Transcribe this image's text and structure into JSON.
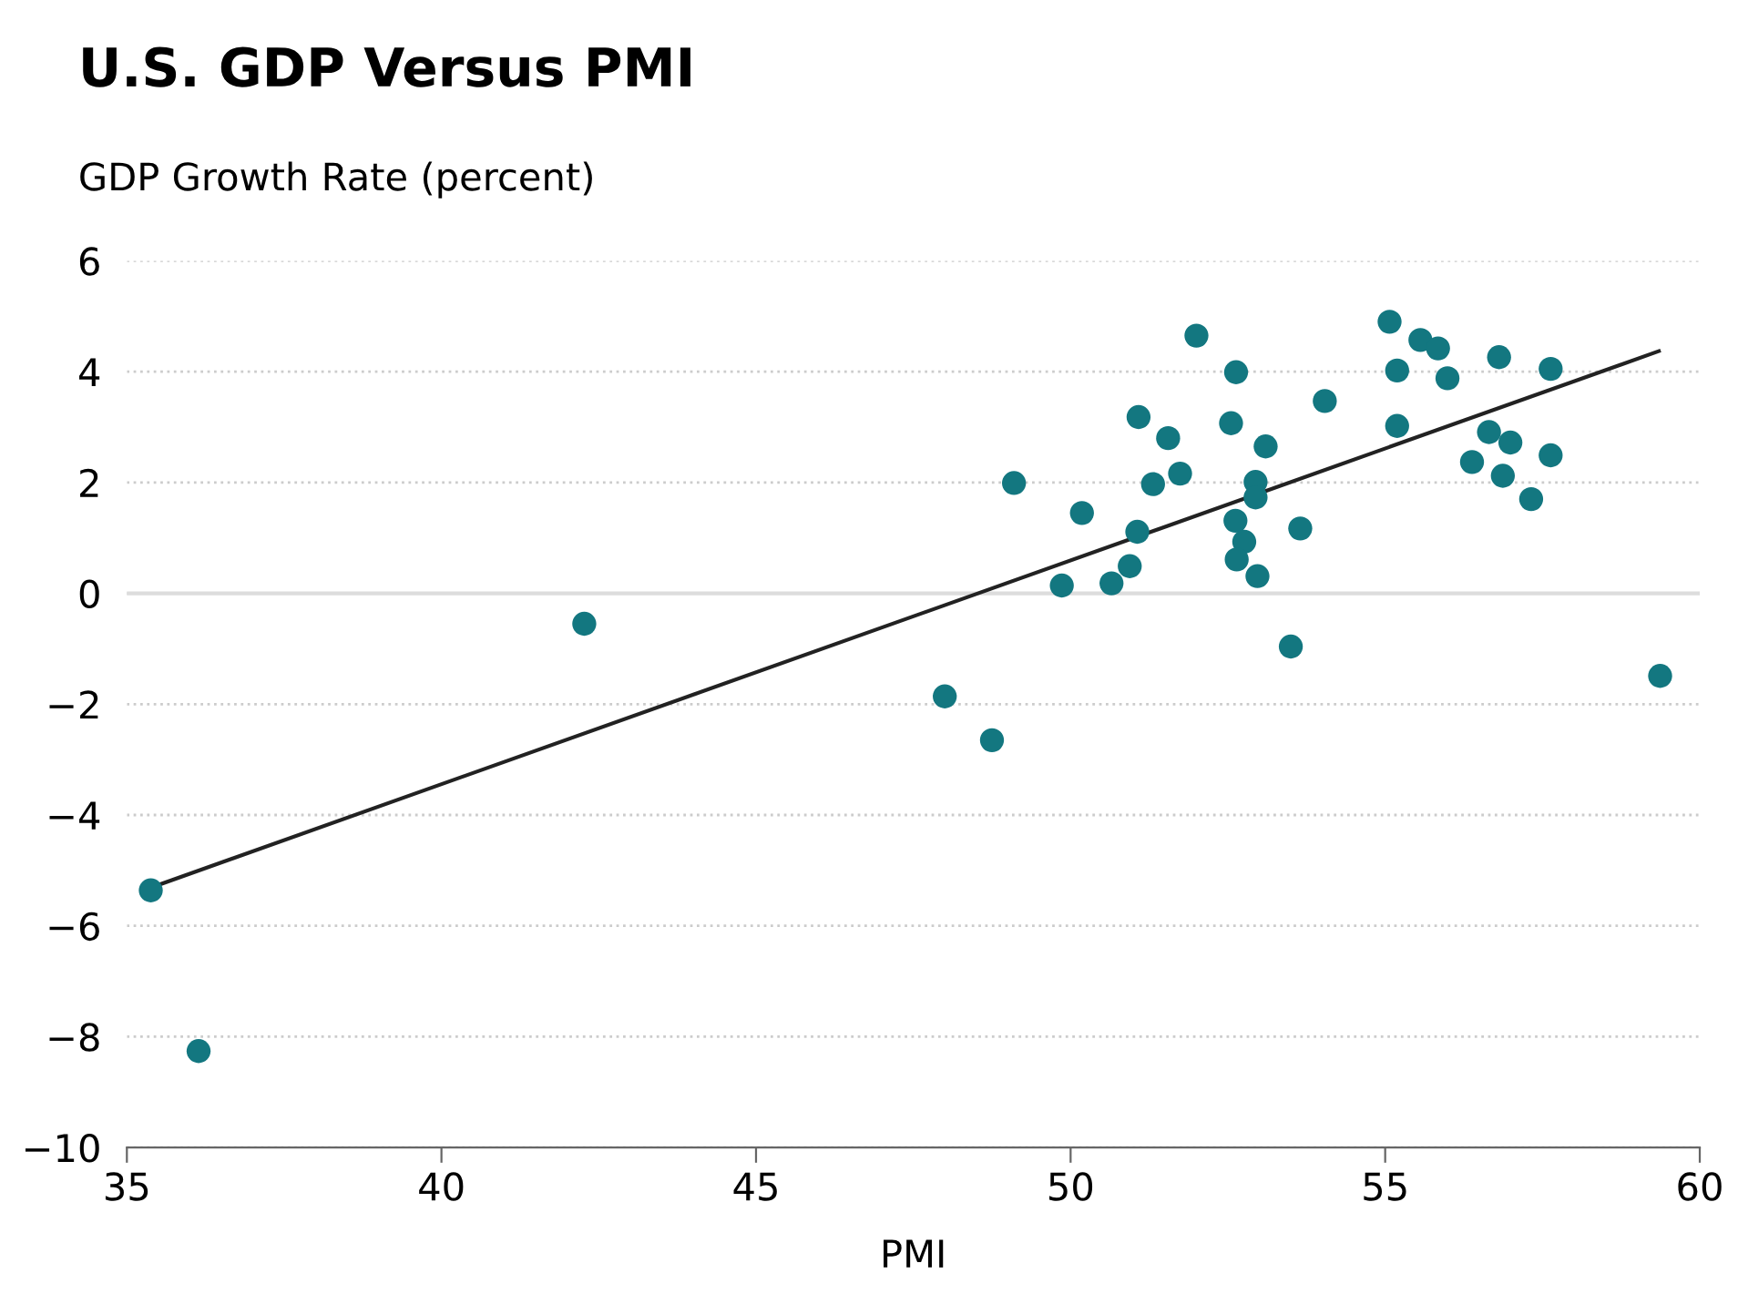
{
  "chart_data": {
    "type": "scatter",
    "title": "U.S. GDP Versus PMI",
    "ylabel": "GDP Growth Rate (percent)",
    "xlabel": "PMI",
    "xlim": [
      35,
      60
    ],
    "xticks": [
      35,
      40,
      45,
      50,
      55,
      60
    ],
    "ylim": [
      -10,
      6
    ],
    "yticks": [
      -10,
      -8,
      -6,
      -4,
      -2,
      0,
      2,
      4,
      6
    ],
    "grid": "y",
    "marker": "circle",
    "ref_lines": [
      {
        "axis": "y",
        "value": 0,
        "color": "#dcdcdc",
        "line_style": "solid"
      }
    ],
    "series": [
      {
        "type": "scatter",
        "color": "#137780",
        "x": [
          52.0,
          55.07,
          55.56,
          55.84,
          56.81,
          57.63,
          52.63,
          55.19,
          55.99,
          54.04,
          51.08,
          52.55,
          55.19,
          51.55,
          53.1,
          56.65,
          56.99,
          57.63,
          56.38,
          56.87,
          57.32,
          49.1,
          51.31,
          51.74,
          52.94,
          52.94,
          50.18,
          51.06,
          52.62,
          52.76,
          53.65,
          52.64,
          52.97,
          50.94,
          50.65,
          49.86,
          53.5,
          59.37,
          48.0,
          48.75,
          42.27,
          35.38,
          36.14
        ],
        "values": [
          4.65,
          4.9,
          4.57,
          4.42,
          4.26,
          4.05,
          3.99,
          4.02,
          3.88,
          3.47,
          3.18,
          3.07,
          3.02,
          2.8,
          2.65,
          2.91,
          2.72,
          2.49,
          2.37,
          2.12,
          1.7,
          1.99,
          1.97,
          2.16,
          2.01,
          1.73,
          1.45,
          1.11,
          1.31,
          0.93,
          1.17,
          0.61,
          0.31,
          0.49,
          0.18,
          0.14,
          -0.96,
          -1.49,
          -1.86,
          -2.65,
          -0.55,
          -5.36,
          -8.26
        ]
      },
      {
        "type": "line",
        "color": "#222222",
        "marker": "none",
        "line_style": "solid",
        "x": [
          35.38,
          59.35
        ],
        "values": [
          -5.31,
          4.37
        ]
      }
    ]
  }
}
